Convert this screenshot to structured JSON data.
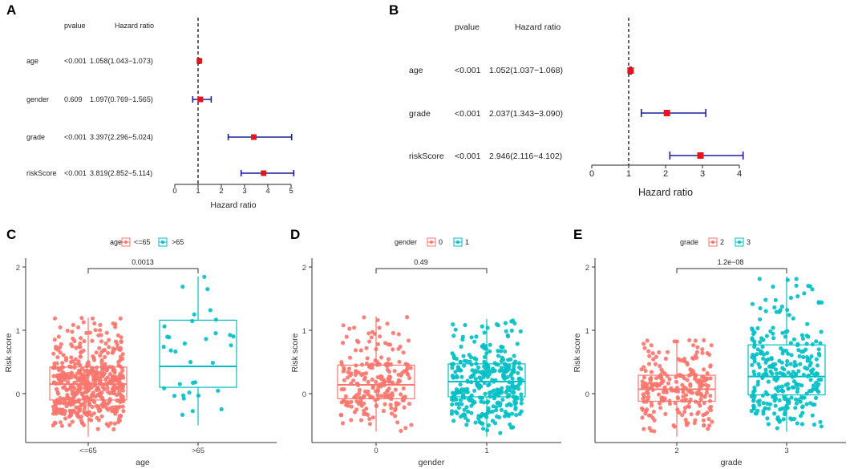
{
  "panel_labels": [
    "A",
    "B",
    "C",
    "D",
    "E"
  ],
  "chart_data": [
    {
      "panel": "A",
      "type": "forest",
      "headers": {
        "pvalue": "pvalue",
        "hr": "Hazard ratio"
      },
      "rows": [
        {
          "label": "age",
          "pvalue": "<0.001",
          "hr_text": "1.058(1.043−1.073)",
          "hr": 1.058,
          "lo": 1.043,
          "hi": 1.073
        },
        {
          "label": "gender",
          "pvalue": "0.609",
          "hr_text": "1.097(0.769−1.565)",
          "hr": 1.097,
          "lo": 0.769,
          "hi": 1.565
        },
        {
          "label": "grade",
          "pvalue": "<0.001",
          "hr_text": "3.397(2.296−5.024)",
          "hr": 3.397,
          "lo": 2.296,
          "hi": 5.024
        },
        {
          "label": "riskScore",
          "pvalue": "<0.001",
          "hr_text": "3.819(2.852−5.114)",
          "hr": 3.819,
          "lo": 2.852,
          "hi": 5.114
        }
      ],
      "xlim": [
        0,
        5
      ],
      "ticks": [
        "0",
        "1",
        "2",
        "3",
        "4",
        "5"
      ],
      "ref_line": 1,
      "xlabel": "Hazard ratio",
      "point_color": "#e8131c",
      "ci_color": "#1c1f9a"
    },
    {
      "panel": "B",
      "type": "forest",
      "headers": {
        "pvalue": "pvalue",
        "hr": "Hazard ratio"
      },
      "rows": [
        {
          "label": "age",
          "pvalue": "<0.001",
          "hr_text": "1.052(1.037−1.068)",
          "hr": 1.052,
          "lo": 1.037,
          "hi": 1.068
        },
        {
          "label": "grade",
          "pvalue": "<0.001",
          "hr_text": "2.037(1.343−3.090)",
          "hr": 2.037,
          "lo": 1.343,
          "hi": 3.09
        },
        {
          "label": "riskScore",
          "pvalue": "<0.001",
          "hr_text": "2.946(2.116−4.102)",
          "hr": 2.946,
          "lo": 2.116,
          "hi": 4.102
        }
      ],
      "xlim": [
        0,
        4
      ],
      "ticks": [
        "0",
        "1",
        "2",
        "3",
        "4"
      ],
      "ref_line": 1,
      "xlabel": "Hazard ratio",
      "point_color": "#e8131c",
      "ci_color": "#1c1f9a"
    },
    {
      "panel": "C",
      "type": "boxplot",
      "legend_title": "age",
      "legend": [
        "<=65",
        ">65"
      ],
      "categories": [
        "<=65",
        ">65"
      ],
      "xlabel": "age",
      "ylabel": "Risk score",
      "yticks": [
        "0",
        "1",
        "2"
      ],
      "ylim": [
        -0.72,
        2.15
      ],
      "pvalue": "0.0013",
      "colors": [
        "#f8766d",
        "#00bfc4"
      ],
      "boxes": [
        {
          "q1": -0.1,
          "median": 0.15,
          "q3": 0.42,
          "whisker_lo": -0.68,
          "whisker_hi": 1.2,
          "n_points": 520
        },
        {
          "q1": 0.1,
          "median": 0.43,
          "q3": 1.16,
          "whisker_lo": -0.5,
          "whisker_hi": 1.85,
          "n_points": 34
        }
      ]
    },
    {
      "panel": "D",
      "type": "boxplot",
      "legend_title": "gender",
      "legend": [
        "0",
        "1"
      ],
      "categories": [
        "0",
        "1"
      ],
      "xlabel": "gender",
      "ylabel": "Risk score",
      "yticks": [
        "0",
        "1",
        "2"
      ],
      "ylim": [
        -0.72,
        2.15
      ],
      "pvalue": "0.49",
      "colors": [
        "#f8766d",
        "#00bfc4"
      ],
      "boxes": [
        {
          "q1": -0.08,
          "median": 0.14,
          "q3": 0.45,
          "whisker_lo": -0.6,
          "whisker_hi": 1.22,
          "n_points": 220
        },
        {
          "q1": -0.05,
          "median": 0.19,
          "q3": 0.47,
          "whisker_lo": -0.68,
          "whisker_hi": 1.18,
          "n_points": 330
        }
      ]
    },
    {
      "panel": "E",
      "type": "boxplot",
      "legend_title": "grade",
      "legend": [
        "2",
        "3"
      ],
      "categories": [
        "2",
        "3"
      ],
      "xlabel": "grade",
      "ylabel": "Risk score",
      "yticks": [
        "0",
        "1",
        "2"
      ],
      "ylim": [
        -0.72,
        2.15
      ],
      "pvalue": "1.2e−08",
      "colors": [
        "#f8766d",
        "#00bfc4"
      ],
      "boxes": [
        {
          "q1": -0.12,
          "median": 0.07,
          "q3": 0.29,
          "whisker_lo": -0.68,
          "whisker_hi": 0.85,
          "n_points": 240
        },
        {
          "q1": -0.02,
          "median": 0.27,
          "q3": 0.77,
          "whisker_lo": -0.6,
          "whisker_hi": 1.85,
          "n_points": 290
        }
      ]
    }
  ]
}
